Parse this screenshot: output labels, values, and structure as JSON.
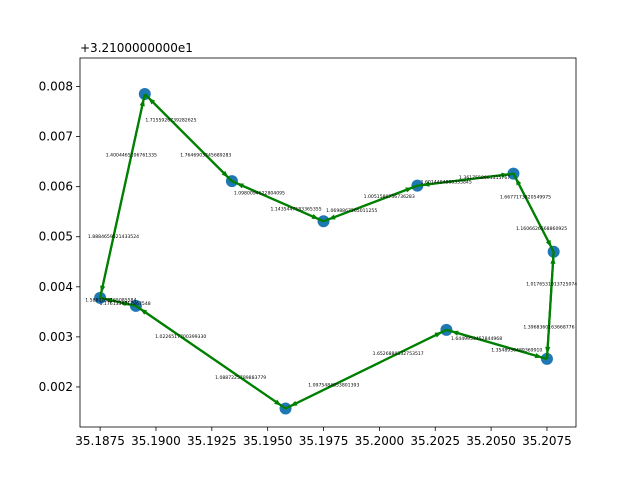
{
  "chart_data": {
    "type": "line",
    "title": "",
    "xlabel": "",
    "ylabel": "",
    "y_offset_label": "+3.2100000000e1",
    "xlim": [
      35.1866,
      35.2088
    ],
    "ylim": [
      0.0012,
      0.00857
    ],
    "x_ticks": [
      35.1875,
      35.19,
      35.1925,
      35.195,
      35.1975,
      35.2,
      35.2025,
      35.205,
      35.2075
    ],
    "x_tick_labels": [
      "35.1875",
      "35.1900",
      "35.1925",
      "35.1950",
      "35.1975",
      "35.2000",
      "35.2025",
      "35.2050",
      "35.2075"
    ],
    "y_ticks": [
      0.002,
      0.003,
      0.004,
      0.005,
      0.006,
      0.007,
      0.008
    ],
    "y_tick_labels": [
      "0.002",
      "0.003",
      "0.004",
      "0.005",
      "0.006",
      "0.007",
      "0.008"
    ],
    "grid": false,
    "marker_color": "#1f77b4",
    "edge_color": "#008000",
    "nodes": [
      {
        "x": 35.1875,
        "y": 0.00378
      },
      {
        "x": 35.1895,
        "y": 0.00785
      },
      {
        "x": 35.1934,
        "y": 0.00611
      },
      {
        "x": 35.1975,
        "y": 0.00531
      },
      {
        "x": 35.2017,
        "y": 0.00602
      },
      {
        "x": 35.206,
        "y": 0.00626
      },
      {
        "x": 35.2078,
        "y": 0.0047
      },
      {
        "x": 35.2075,
        "y": 0.00256
      },
      {
        "x": 35.203,
        "y": 0.00314
      },
      {
        "x": 35.1958,
        "y": 0.00157
      },
      {
        "x": 35.1891,
        "y": 0.00362
      }
    ],
    "edges": [
      {
        "from": 0,
        "to": 1,
        "label": "1.8884659521433524"
      },
      {
        "from": 1,
        "to": 0,
        "label": "1.4004465106761335"
      },
      {
        "from": 1,
        "to": 2,
        "label": "1.7155926739282625"
      },
      {
        "from": 2,
        "to": 1,
        "label": "1.7646903245689283"
      },
      {
        "from": 2,
        "to": 3,
        "label": "1.0980094622804095"
      },
      {
        "from": 3,
        "to": 2,
        "label": "1.1435447583365355"
      },
      {
        "from": 3,
        "to": 4,
        "label": "1.0698867265011255"
      },
      {
        "from": 4,
        "to": 3,
        "label": "1.0051580756736283"
      },
      {
        "from": 4,
        "to": 5,
        "label": "1.6014404866335845"
      },
      {
        "from": 5,
        "to": 4,
        "label": "1.3617558661315767"
      },
      {
        "from": 5,
        "to": 6,
        "label": "1.6677173820549975"
      },
      {
        "from": 6,
        "to": 5,
        "label": "1.1606626568860925"
      },
      {
        "from": 6,
        "to": 7,
        "label": "1.0176531013725074"
      },
      {
        "from": 7,
        "to": 6,
        "label": "1.3968360163668776"
      },
      {
        "from": 7,
        "to": 8,
        "label": "1.3548956489369910"
      },
      {
        "from": 8,
        "to": 7,
        "label": "1.6449953452844968"
      },
      {
        "from": 8,
        "to": 9,
        "label": "1.6526880332753517"
      },
      {
        "from": 9,
        "to": 8,
        "label": "1.0975484853801393"
      },
      {
        "from": 9,
        "to": 10,
        "label": "1.0887225789883779"
      },
      {
        "from": 10,
        "to": 9,
        "label": "1.0226517700399330"
      },
      {
        "from": 10,
        "to": 0,
        "label": "1.1761338717867548"
      },
      {
        "from": 0,
        "to": 10,
        "label": "1.5880268165085584"
      }
    ]
  }
}
